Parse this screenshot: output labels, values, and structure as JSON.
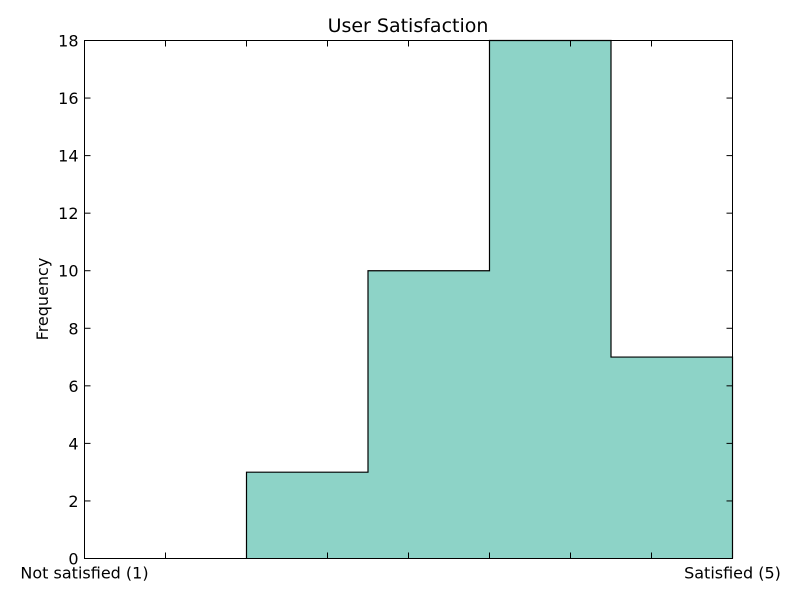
{
  "chart_data": {
    "type": "bar",
    "style": "step-histogram",
    "title": "User Satisfaction",
    "xlabel": "",
    "ylabel": "Frequency",
    "xlim": [
      1,
      5
    ],
    "ylim": [
      0,
      18
    ],
    "y_ticks": [
      0,
      2,
      4,
      6,
      8,
      10,
      12,
      14,
      16,
      18
    ],
    "x_ticks": [
      1,
      1.5,
      2,
      2.5,
      3,
      3.5,
      4,
      4.5,
      5
    ],
    "x_tick_labels": [
      {
        "x": 1,
        "label": "Not satisfied (1)"
      },
      {
        "x": 5,
        "label": "Satisfied (5)"
      }
    ],
    "bins": [
      {
        "x0": 1.0,
        "x1": 2.0,
        "count": 0
      },
      {
        "x0": 2.0,
        "x1": 2.75,
        "count": 3
      },
      {
        "x0": 2.75,
        "x1": 3.5,
        "count": 10
      },
      {
        "x0": 3.5,
        "x1": 4.25,
        "count": 18
      },
      {
        "x0": 4.25,
        "x1": 5.0,
        "count": 7
      }
    ],
    "fill_color": "#8dd3c7",
    "edge_color": "#000000",
    "grid": false
  }
}
